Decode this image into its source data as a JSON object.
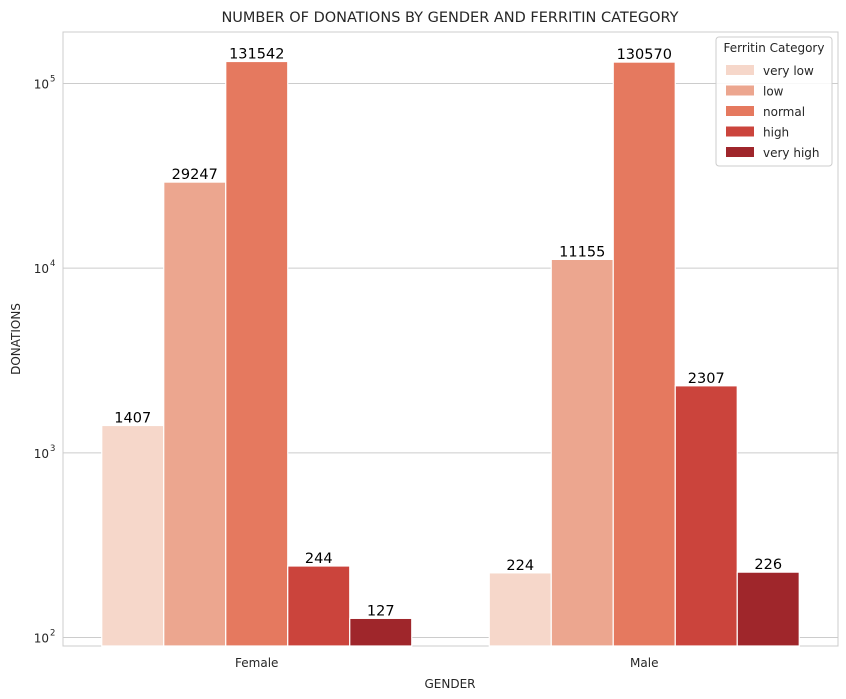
{
  "chart_data": {
    "type": "bar",
    "title": "NUMBER OF DONATIONS BY GENDER AND FERRITIN CATEGORY",
    "xlabel": "GENDER",
    "ylabel": "DONATIONS",
    "yscale": "log",
    "ylim": [
      90,
      190000
    ],
    "yticks": [
      {
        "value": 100,
        "base": "10",
        "exp": "2"
      },
      {
        "value": 1000,
        "base": "10",
        "exp": "3"
      },
      {
        "value": 10000,
        "base": "10",
        "exp": "4"
      },
      {
        "value": 100000,
        "base": "10",
        "exp": "5"
      }
    ],
    "grid": true,
    "categories": [
      "Female",
      "Male"
    ],
    "legend": {
      "title": "Ferritin Category",
      "placement": "top-right"
    },
    "series": [
      {
        "name": "very low",
        "color": "#f6d7ca",
        "values": [
          1407,
          224
        ]
      },
      {
        "name": "low",
        "color": "#eca68f",
        "values": [
          29247,
          11155
        ]
      },
      {
        "name": "normal",
        "color": "#e5795f",
        "values": [
          131542,
          130570
        ]
      },
      {
        "name": "high",
        "color": "#cb443c",
        "values": [
          244,
          2307
        ]
      },
      {
        "name": "very high",
        "color": "#9f262b",
        "values": [
          127,
          226
        ]
      }
    ]
  }
}
